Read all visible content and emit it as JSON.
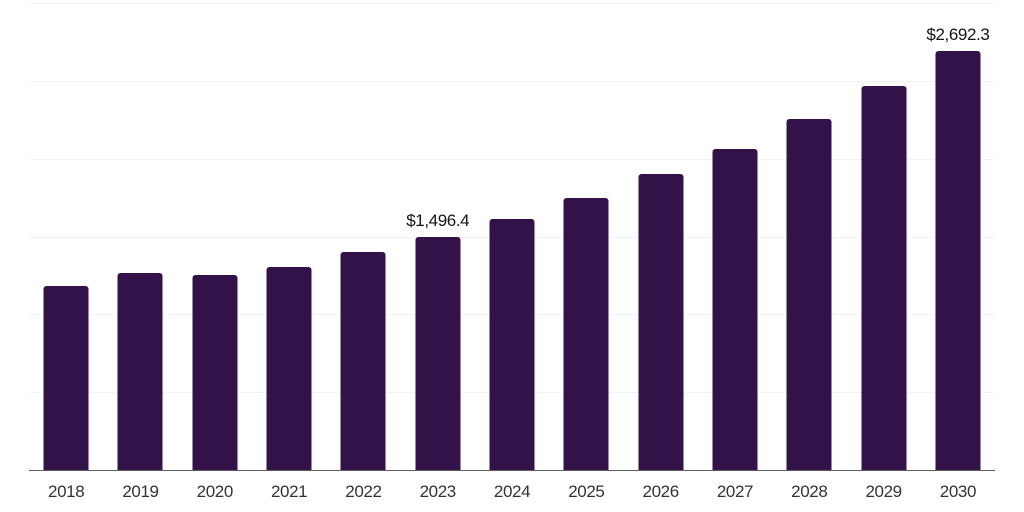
{
  "chart_data": {
    "type": "bar",
    "title": "",
    "xlabel": "",
    "ylabel": "",
    "legend": "none",
    "grid": "horizontal",
    "categories": [
      "2018",
      "2019",
      "2020",
      "2021",
      "2022",
      "2023",
      "2024",
      "2025",
      "2026",
      "2027",
      "2028",
      "2029",
      "2030"
    ],
    "values": [
      1180,
      1267,
      1251,
      1303,
      1399,
      1496.4,
      1611,
      1750,
      1903,
      2060,
      2255,
      2465,
      2692.3
    ],
    "value_labels": [
      {
        "category": "2023",
        "text": "$1,496.4"
      },
      {
        "category": "2030",
        "text": "$2,692.3"
      }
    ],
    "ylim": [
      0,
      3000
    ],
    "gridline_step": 500,
    "y_axis_labels_visible": false,
    "colors": {
      "bar": "#33124A",
      "gridline": "#f3f3f3",
      "axis": "#5f5f5f",
      "tick_label": "#333333",
      "value_label": "#141414",
      "background": "#ffffff"
    }
  }
}
